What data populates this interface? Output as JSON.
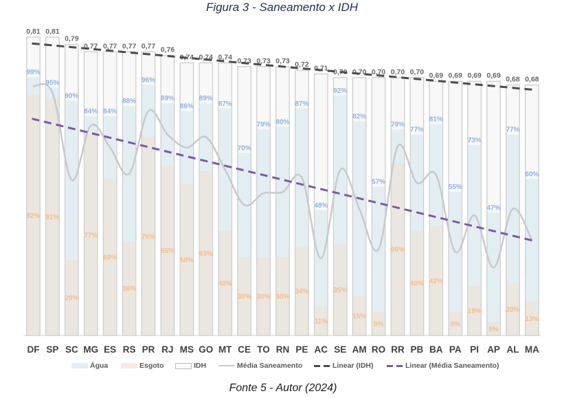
{
  "chart_data": {
    "type": "bar",
    "title": "Figura 3 - Saneamento x IDH",
    "caption": "Fonte 5 - Autor (2024)",
    "xlabel": "",
    "ylabel": "",
    "ylim": [
      0,
      120
    ],
    "y2lim": [
      0,
      0.85
    ],
    "grid": false,
    "axes_visible": false,
    "legend": "bottom",
    "categories": [
      "DF",
      "SP",
      "SC",
      "MG",
      "ES",
      "RS",
      "PR",
      "RJ",
      "MS",
      "GO",
      "MT",
      "CE",
      "TO",
      "RN",
      "PE",
      "AC",
      "SE",
      "AM",
      "RO",
      "RR",
      "PB",
      "BA",
      "PA",
      "PI",
      "AP",
      "AL",
      "MA"
    ],
    "series": [
      {
        "name": "Água",
        "type": "bar",
        "axis": "primary",
        "unit": "%",
        "color": "#e3eef3",
        "label_color": "#8db3e2",
        "values": [
          99,
          95,
          90,
          84,
          84,
          88,
          96,
          89,
          86,
          89,
          87,
          70,
          79,
          80,
          87,
          48,
          92,
          82,
          57,
          79,
          77,
          81,
          55,
          73,
          47,
          77,
          60
        ],
        "data_labels": [
          "99%",
          "95%",
          "90%",
          "84%",
          "84%",
          "88%",
          "96%",
          "89%",
          "86%",
          "89%",
          "87%",
          "70%",
          "79%",
          "80%",
          "87%",
          "48%",
          "92%",
          "82%",
          "57%",
          "79%",
          "77%",
          "81%",
          "55%",
          "73%",
          "47%",
          "77%",
          "60%"
        ]
      },
      {
        "name": "Esgoto",
        "type": "bar",
        "axis": "primary",
        "unit": "%",
        "color": "#ebe6df",
        "label_color": "#f5bd8b",
        "values": [
          92,
          91,
          29,
          77,
          60,
          36,
          76,
          65,
          58,
          63,
          40,
          30,
          30,
          30,
          34,
          11,
          35,
          15,
          9,
          66,
          40,
          42,
          9,
          19,
          5,
          20,
          13
        ],
        "data_labels": [
          "92%",
          "91%",
          "29%",
          "77%",
          "60%",
          "36%",
          "76%",
          "65%",
          "58%",
          "63%",
          "40%",
          "30%",
          "30%",
          "30%",
          "34%",
          "11%",
          "35%",
          "15%",
          "9%",
          "66%",
          "40%",
          "42%",
          "9%",
          "19%",
          "5%",
          "20%",
          "13%"
        ]
      },
      {
        "name": "IDH",
        "type": "bar",
        "axis": "secondary",
        "color": "#f8f8f8",
        "border_color": "#cccccc",
        "label_color": "#666666",
        "values": [
          0.81,
          0.81,
          0.79,
          0.77,
          0.77,
          0.77,
          0.77,
          0.76,
          0.74,
          0.74,
          0.74,
          0.73,
          0.73,
          0.73,
          0.72,
          0.71,
          0.7,
          0.7,
          0.7,
          0.7,
          0.7,
          0.69,
          0.69,
          0.69,
          0.69,
          0.68,
          0.68
        ],
        "data_labels": [
          "0,81",
          "0,81",
          "0,79",
          "0,77",
          "0,77",
          "0,77",
          "0,77",
          "0,76",
          "0,74",
          "0,74",
          "0,74",
          "0,73",
          "0,73",
          "0,73",
          "0,72",
          "0,71",
          "0,70",
          "0,70",
          "0,70",
          "0,70",
          "0,70",
          "0,69",
          "0,69",
          "0,69",
          "0,69",
          "0,68",
          "0,68"
        ]
      },
      {
        "name": "Média Saneamento",
        "type": "line",
        "smooth": true,
        "axis": "primary",
        "color": "#c9c9c9",
        "values": [
          95.5,
          93,
          59.5,
          80.5,
          72,
          62,
          86,
          77,
          72,
          76,
          63.5,
          50,
          54.5,
          55,
          60.5,
          29.5,
          63.5,
          48.5,
          33,
          72.5,
          58.5,
          61.5,
          32,
          46,
          26,
          48.5,
          36.5
        ]
      },
      {
        "name": "Linear (IDH)",
        "type": "trendline",
        "of_series": "IDH",
        "fit": "linear",
        "color": "#4a4a4a"
      },
      {
        "name": "Linear (Média Saneamento)",
        "type": "trendline",
        "of_series": "Média Saneamento",
        "fit": "linear",
        "color": "#7a5aa5"
      }
    ]
  }
}
